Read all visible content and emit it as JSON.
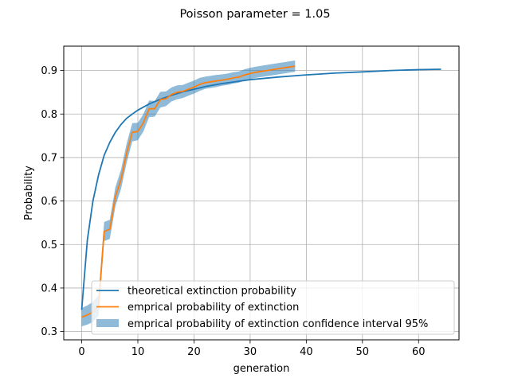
{
  "chart_data": {
    "type": "line",
    "title": "Poisson parameter = 1.05",
    "xlabel": "generation",
    "ylabel": "Probability",
    "xlim": [
      -3.2,
      67.2
    ],
    "ylim": [
      0.281,
      0.956
    ],
    "xticks": [
      0,
      10,
      20,
      30,
      40,
      50,
      60
    ],
    "yticks": [
      0.3,
      0.4,
      0.5,
      0.6,
      0.7,
      0.8,
      0.9
    ],
    "grid": true,
    "legend_position": "lower-right",
    "series": [
      {
        "name": "theoretical extinction probability",
        "kind": "line",
        "color": "#1f77b4",
        "x": [
          0,
          1,
          2,
          3,
          4,
          5,
          6,
          7,
          8,
          9,
          10,
          12,
          14,
          16,
          18,
          20,
          22,
          25,
          30,
          35,
          40,
          45,
          50,
          55,
          60,
          64
        ],
        "y": [
          0.35,
          0.51,
          0.6,
          0.66,
          0.705,
          0.735,
          0.758,
          0.776,
          0.79,
          0.8,
          0.809,
          0.823,
          0.834,
          0.843,
          0.851,
          0.857,
          0.863,
          0.87,
          0.879,
          0.885,
          0.89,
          0.894,
          0.897,
          0.9,
          0.902,
          0.903
        ]
      },
      {
        "name": "emprical probability of extinction",
        "kind": "line",
        "color": "#ff7f0e",
        "x": [
          0,
          1,
          2,
          3,
          4,
          5,
          6,
          7,
          8,
          9,
          10,
          11,
          12,
          13,
          14,
          15,
          16,
          17,
          18,
          19,
          20,
          21,
          22,
          23,
          24,
          25,
          26,
          27,
          28,
          29,
          30,
          31,
          32,
          33,
          34,
          35,
          36,
          37,
          38
        ],
        "y": [
          0.333,
          0.338,
          0.345,
          0.36,
          0.53,
          0.535,
          0.61,
          0.65,
          0.71,
          0.758,
          0.76,
          0.78,
          0.812,
          0.812,
          0.833,
          0.835,
          0.845,
          0.85,
          0.852,
          0.857,
          0.862,
          0.868,
          0.872,
          0.874,
          0.876,
          0.878,
          0.88,
          0.883,
          0.885,
          0.89,
          0.893,
          0.896,
          0.898,
          0.9,
          0.902,
          0.904,
          0.906,
          0.908,
          0.91
        ]
      },
      {
        "name": "emprical probability of extinction confidence interval 95%",
        "kind": "band",
        "color": "#1f77b4",
        "opacity": 0.5,
        "x": [
          0,
          1,
          2,
          3,
          4,
          5,
          6,
          7,
          8,
          9,
          10,
          11,
          12,
          13,
          14,
          15,
          16,
          17,
          18,
          19,
          20,
          21,
          22,
          23,
          24,
          25,
          26,
          27,
          28,
          29,
          30,
          31,
          32,
          33,
          34,
          35,
          36,
          37,
          38
        ],
        "lower": [
          0.312,
          0.316,
          0.322,
          0.336,
          0.508,
          0.513,
          0.588,
          0.628,
          0.688,
          0.737,
          0.74,
          0.76,
          0.793,
          0.794,
          0.815,
          0.818,
          0.829,
          0.834,
          0.837,
          0.842,
          0.847,
          0.853,
          0.858,
          0.86,
          0.862,
          0.865,
          0.867,
          0.87,
          0.872,
          0.877,
          0.88,
          0.883,
          0.885,
          0.887,
          0.889,
          0.891,
          0.893,
          0.895,
          0.897
        ],
        "upper": [
          0.354,
          0.36,
          0.368,
          0.384,
          0.552,
          0.557,
          0.632,
          0.672,
          0.732,
          0.779,
          0.78,
          0.8,
          0.831,
          0.83,
          0.851,
          0.852,
          0.861,
          0.866,
          0.867,
          0.872,
          0.877,
          0.883,
          0.886,
          0.888,
          0.89,
          0.891,
          0.893,
          0.896,
          0.898,
          0.903,
          0.906,
          0.909,
          0.911,
          0.913,
          0.915,
          0.917,
          0.919,
          0.921,
          0.923
        ]
      }
    ]
  }
}
